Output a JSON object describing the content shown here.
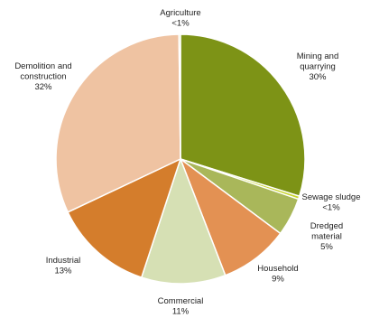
{
  "chart_data": {
    "type": "pie",
    "title": "",
    "start_angle_deg": 0,
    "direction": "clockwise",
    "slices": [
      {
        "label": "Mining and quarrying",
        "value_label": "30%",
        "value": 30,
        "color": "#7d9316"
      },
      {
        "label": "Sewage sludge",
        "value_label": "<1%",
        "value": 0.4,
        "color": "#c8d52c"
      },
      {
        "label": "Dredged material",
        "value_label": "5%",
        "value": 5,
        "color": "#a9b75a"
      },
      {
        "label": "Household",
        "value_label": "9%",
        "value": 9,
        "color": "#e39153"
      },
      {
        "label": "Commercial",
        "value_label": "11%",
        "value": 11,
        "color": "#d6e0b4"
      },
      {
        "label": "Industrial",
        "value_label": "13%",
        "value": 13,
        "color": "#d47d2c"
      },
      {
        "label": "Demolition and construction",
        "value_label": "32%",
        "value": 32,
        "color": "#efc3a2"
      },
      {
        "label": "Agriculture",
        "value_label": "<1%",
        "value": 0.2,
        "color": "#aacb3a"
      }
    ],
    "labels": [
      {
        "lines": [
          "Agriculture",
          "<1%"
        ]
      },
      {
        "lines": [
          "Mining and",
          "quarrying",
          "30%"
        ]
      },
      {
        "lines": [
          "Sewage sludge",
          "<1%"
        ]
      },
      {
        "lines": [
          "Dredged",
          "material",
          "5%"
        ]
      },
      {
        "lines": [
          "Household",
          "9%"
        ]
      },
      {
        "lines": [
          "Commercial",
          "11%"
        ]
      },
      {
        "lines": [
          "Industrial",
          "13%"
        ]
      },
      {
        "lines": [
          "Demolition and",
          "construction",
          "32%"
        ]
      }
    ]
  }
}
